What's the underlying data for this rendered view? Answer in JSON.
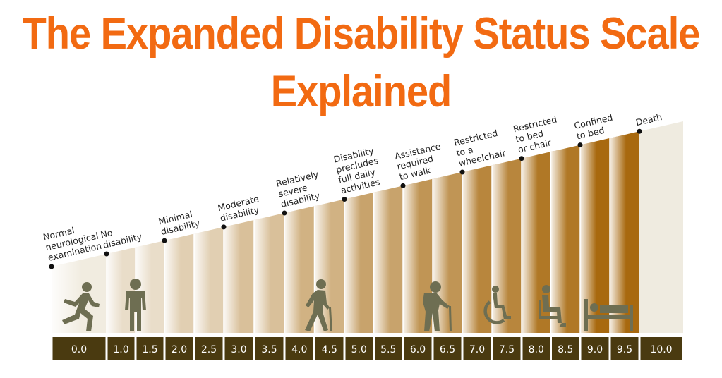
{
  "title": {
    "line1": "The Expanded Disability Status Scale",
    "line2": "Explained"
  },
  "colors": {
    "title": "#f26a12",
    "bar": "#4a3a10",
    "band_start": "#f1ece0",
    "band_end": "#a8690f",
    "death_band": "#efebe0",
    "icon": "#6e6e52"
  },
  "values": [
    "0.0",
    "1.0",
    "1.5",
    "2.0",
    "2.5",
    "3.0",
    "3.5",
    "4.0",
    "4.5",
    "5.0",
    "5.5",
    "6.0",
    "6.5",
    "7.0",
    "7.5",
    "8.0",
    "8.5",
    "9.0",
    "9.5",
    "10.0"
  ],
  "milestones": [
    {
      "lines": [
        "Normal",
        "neurological",
        "examination"
      ]
    },
    {
      "lines": [
        "No",
        "disability"
      ]
    },
    {
      "lines": [
        "Minimal",
        "disability"
      ]
    },
    {
      "lines": [
        "Moderate",
        "disability"
      ]
    },
    {
      "lines": [
        "Relatively",
        "severe",
        "disability"
      ]
    },
    {
      "lines": [
        "Disability",
        "precludes",
        "full daily",
        "activities"
      ]
    },
    {
      "lines": [
        "Assistance",
        "required",
        "to walk"
      ]
    },
    {
      "lines": [
        "Restricted",
        "to a",
        "wheelchair"
      ]
    },
    {
      "lines": [
        "Restricted",
        "to bed",
        "or chair"
      ]
    },
    {
      "lines": [
        "Confined",
        "to bed"
      ]
    },
    {
      "lines": [
        "Death"
      ]
    }
  ],
  "icons": [
    "running-person-icon",
    "standing-person-icon",
    "walking-with-cane-icon",
    "elderly-with-cane-icon",
    "wheelchair-icon",
    "seated-person-icon",
    "bed-icon"
  ]
}
